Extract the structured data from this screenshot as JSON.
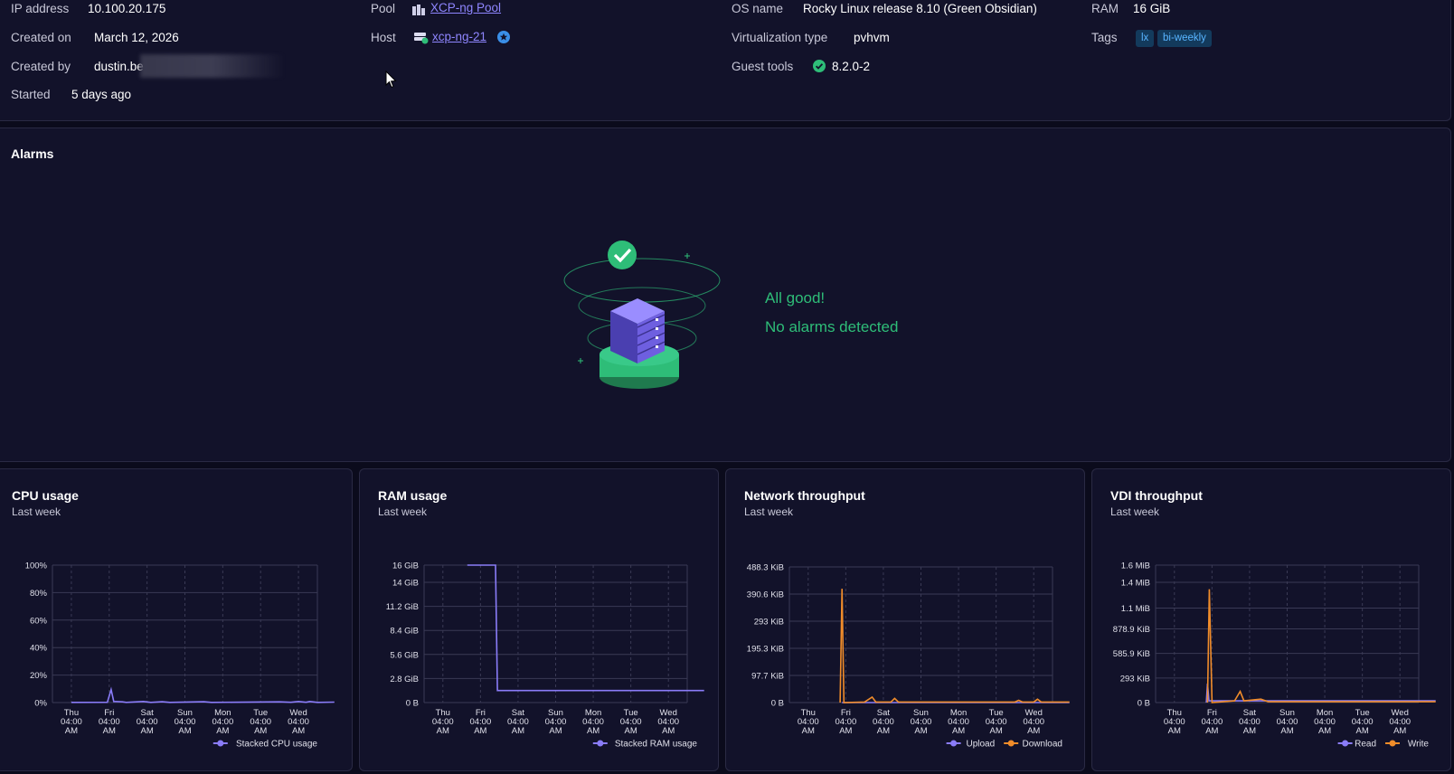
{
  "vm_info": {
    "ip_label": "IP address",
    "ip_value": "10.100.20.175",
    "created_on_label": "Created on",
    "created_on_value": "March 12, 2026",
    "created_by_label": "Created by",
    "created_by_value": "dustin.be",
    "started_label": "Started",
    "started_value": "5 days ago",
    "pool_label": "Pool",
    "pool_value": "XCP-ng Pool",
    "host_label": "Host",
    "host_value": "xcp-ng-21",
    "os_label": "OS name",
    "os_value": "Rocky Linux release 8.10 (Green Obsidian)",
    "virt_label": "Virtualization type",
    "virt_value": "pvhvm",
    "guest_label": "Guest tools",
    "guest_value": "8.2.0-2",
    "ram_label": "RAM",
    "ram_value": "16 GiB",
    "tags_label": "Tags",
    "tags": [
      "lx",
      "bi-weekly"
    ]
  },
  "alarms": {
    "title": "Alarms",
    "status": "All good!",
    "message": "No alarms detected"
  },
  "colors": {
    "purple": "#8a7cf8",
    "orange": "#f08c2a",
    "green": "#2ebd78"
  },
  "x_ticks": [
    [
      "Thu",
      "04:00",
      "AM"
    ],
    [
      "Fri",
      "04:00",
      "AM"
    ],
    [
      "Sat",
      "04:00",
      "AM"
    ],
    [
      "Sun",
      "04:00",
      "AM"
    ],
    [
      "Mon",
      "04:00",
      "AM"
    ],
    [
      "Tue",
      "04:00",
      "AM"
    ],
    [
      "Wed",
      "04:00",
      "AM"
    ]
  ],
  "chart_data": [
    {
      "type": "line",
      "title": "CPU usage",
      "subtitle": "Last week",
      "yticks": [
        "100%",
        "80%",
        "60%",
        "40%",
        "20%",
        "0%"
      ],
      "ylim": [
        0,
        100
      ],
      "series": [
        {
          "name": "Stacked CPU usage",
          "color": "#8a7cf8",
          "points": [
            [
              0,
              0.1
            ],
            [
              0.95,
              0.2
            ],
            [
              1.05,
              9.5
            ],
            [
              1.12,
              0.8
            ],
            [
              1.35,
              0.5
            ],
            [
              1.45,
              0.1
            ],
            [
              1.9,
              0.8
            ],
            [
              2.1,
              0.1
            ],
            [
              2.4,
              0.6
            ],
            [
              2.6,
              0.1
            ],
            [
              3.5,
              0.6
            ],
            [
              3.7,
              0.1
            ],
            [
              5.5,
              0.5
            ],
            [
              5.8,
              0.2
            ],
            [
              6.0,
              0.8
            ],
            [
              6.2,
              0.2
            ],
            [
              6.3,
              0.8
            ],
            [
              6.5,
              0.1
            ],
            [
              6.95,
              0.3
            ]
          ]
        }
      ]
    },
    {
      "type": "line",
      "title": "RAM usage",
      "subtitle": "Last week",
      "yticks": [
        "16 GiB",
        "14 GiB",
        "11.2 GiB",
        "8.4 GiB",
        "5.6 GiB",
        "2.8 GiB",
        "0 B"
      ],
      "yvals": [
        16,
        14,
        11.2,
        8.4,
        5.6,
        2.8,
        0
      ],
      "ylim": [
        0,
        16
      ],
      "series": [
        {
          "name": "Stacked RAM usage",
          "color": "#8a7cf8",
          "points": [
            [
              0.65,
              16
            ],
            [
              1.4,
              16
            ],
            [
              1.45,
              1.4
            ],
            [
              6.95,
              1.4
            ]
          ]
        }
      ]
    },
    {
      "type": "line",
      "title": "Network throughput",
      "subtitle": "Last week",
      "yticks": [
        "488.3 KiB",
        "390.6 KiB",
        "293 KiB",
        "195.3 KiB",
        "97.7 KiB",
        "0 B"
      ],
      "ylim": [
        0,
        488.3
      ],
      "series": [
        {
          "name": "Upload",
          "color": "#8a7cf8",
          "points": [
            [
              0.9,
              0
            ],
            [
              6.95,
              0
            ]
          ]
        },
        {
          "name": "Download",
          "color": "#f08c2a",
          "points": [
            [
              0.85,
              0
            ],
            [
              0.9,
              410
            ],
            [
              0.95,
              0
            ],
            [
              1.5,
              2
            ],
            [
              1.7,
              20
            ],
            [
              1.8,
              2
            ],
            [
              2.2,
              2
            ],
            [
              2.3,
              15
            ],
            [
              2.4,
              2
            ],
            [
              5.5,
              2
            ],
            [
              5.6,
              8
            ],
            [
              5.7,
              2
            ],
            [
              6.0,
              2
            ],
            [
              6.1,
              12
            ],
            [
              6.2,
              2
            ],
            [
              6.95,
              2
            ]
          ]
        }
      ]
    },
    {
      "type": "line",
      "title": "VDI throughput",
      "subtitle": "Last week",
      "yticks": [
        "1.6 MiB",
        "1.4 MiB",
        "1.1 MiB",
        "878.9 KiB",
        "585.9 KiB",
        "293 KiB",
        "0 B"
      ],
      "yvals": [
        1.6,
        1.4,
        1.1,
        0.858,
        0.572,
        0.286,
        0
      ],
      "ylim": [
        0,
        1.6
      ],
      "series": [
        {
          "name": "Read",
          "color": "#8a7cf8",
          "points": [
            [
              0.85,
              0
            ],
            [
              0.88,
              0.22
            ],
            [
              0.92,
              0.02
            ],
            [
              6.95,
              0.02
            ]
          ]
        },
        {
          "name": "Write",
          "color": "#f08c2a",
          "points": [
            [
              0.88,
              0
            ],
            [
              0.93,
              1.32
            ],
            [
              1.0,
              0
            ],
            [
              1.6,
              0.02
            ],
            [
              1.75,
              0.13
            ],
            [
              1.85,
              0.02
            ],
            [
              2.3,
              0.04
            ],
            [
              2.5,
              0.01
            ],
            [
              6.95,
              0.01
            ]
          ]
        }
      ]
    }
  ]
}
